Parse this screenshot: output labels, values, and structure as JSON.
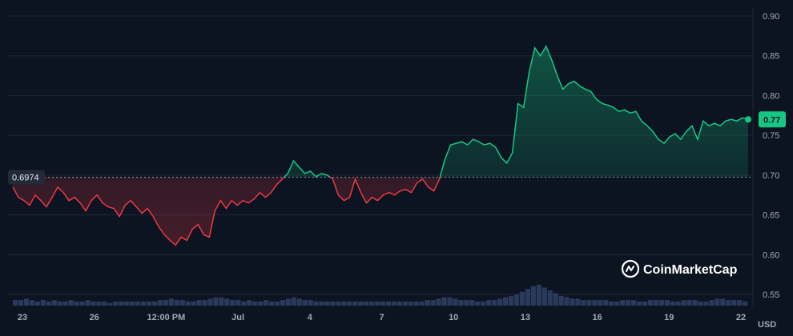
{
  "brand": {
    "name": "CoinMarketCap",
    "logo_icon": "coinmarketcap-logo-icon"
  },
  "colors": {
    "up": "#16c784",
    "down": "#ea3943",
    "background": "#0d1421",
    "grid": "#1f2636",
    "volume": "#2b3a5c"
  },
  "chart_data": {
    "type": "line",
    "x_tick_labels": [
      "23",
      "26",
      "12:00 PM",
      "Jul",
      "4",
      "7",
      "10",
      "13",
      "16",
      "19",
      "22"
    ],
    "y_ticks": [
      0.55,
      0.6,
      0.65,
      0.7,
      0.75,
      0.8,
      0.85,
      0.9
    ],
    "y_tick_labels": [
      "0.55",
      "0.60",
      "0.65",
      "0.70",
      "0.75",
      "0.80",
      "0.85",
      "0.90"
    ],
    "ylim": [
      0.55,
      0.9
    ],
    "y_unit": "USD",
    "reference_value": 0.6974,
    "reference_label": "0.6974",
    "current_value": 0.77,
    "current_label": "0.77",
    "grid": true,
    "points": [
      [
        0,
        0.685
      ],
      [
        1,
        0.672
      ],
      [
        2,
        0.668
      ],
      [
        3,
        0.662
      ],
      [
        4,
        0.675
      ],
      [
        5,
        0.668
      ],
      [
        6,
        0.66
      ],
      [
        7,
        0.672
      ],
      [
        8,
        0.685
      ],
      [
        9,
        0.678
      ],
      [
        10,
        0.668
      ],
      [
        11,
        0.672
      ],
      [
        12,
        0.665
      ],
      [
        13,
        0.655
      ],
      [
        14,
        0.668
      ],
      [
        15,
        0.675
      ],
      [
        16,
        0.665
      ],
      [
        17,
        0.66
      ],
      [
        18,
        0.658
      ],
      [
        19,
        0.648
      ],
      [
        20,
        0.662
      ],
      [
        21,
        0.668
      ],
      [
        22,
        0.66
      ],
      [
        23,
        0.652
      ],
      [
        24,
        0.658
      ],
      [
        25,
        0.648
      ],
      [
        26,
        0.635
      ],
      [
        27,
        0.625
      ],
      [
        28,
        0.618
      ],
      [
        29,
        0.612
      ],
      [
        30,
        0.622
      ],
      [
        31,
        0.618
      ],
      [
        32,
        0.632
      ],
      [
        33,
        0.638
      ],
      [
        34,
        0.625
      ],
      [
        35,
        0.622
      ],
      [
        36,
        0.655
      ],
      [
        37,
        0.668
      ],
      [
        38,
        0.658
      ],
      [
        39,
        0.668
      ],
      [
        40,
        0.662
      ],
      [
        41,
        0.668
      ],
      [
        42,
        0.665
      ],
      [
        43,
        0.67
      ],
      [
        44,
        0.678
      ],
      [
        45,
        0.672
      ],
      [
        46,
        0.678
      ],
      [
        47,
        0.688
      ],
      [
        48,
        0.695
      ],
      [
        49,
        0.702
      ],
      [
        50,
        0.718
      ],
      [
        51,
        0.71
      ],
      [
        52,
        0.702
      ],
      [
        53,
        0.705
      ],
      [
        54,
        0.698
      ],
      [
        55,
        0.702
      ],
      [
        56,
        0.7
      ],
      [
        57,
        0.695
      ],
      [
        58,
        0.675
      ],
      [
        59,
        0.668
      ],
      [
        60,
        0.672
      ],
      [
        61,
        0.695
      ],
      [
        62,
        0.678
      ],
      [
        63,
        0.665
      ],
      [
        64,
        0.672
      ],
      [
        65,
        0.668
      ],
      [
        66,
        0.675
      ],
      [
        67,
        0.678
      ],
      [
        68,
        0.675
      ],
      [
        69,
        0.68
      ],
      [
        70,
        0.682
      ],
      [
        71,
        0.678
      ],
      [
        72,
        0.69
      ],
      [
        73,
        0.695
      ],
      [
        74,
        0.685
      ],
      [
        75,
        0.68
      ],
      [
        76,
        0.695
      ],
      [
        77,
        0.72
      ],
      [
        78,
        0.738
      ],
      [
        79,
        0.74
      ],
      [
        80,
        0.742
      ],
      [
        81,
        0.738
      ],
      [
        82,
        0.745
      ],
      [
        83,
        0.742
      ],
      [
        84,
        0.738
      ],
      [
        85,
        0.74
      ],
      [
        86,
        0.735
      ],
      [
        87,
        0.722
      ],
      [
        88,
        0.715
      ],
      [
        89,
        0.728
      ],
      [
        90,
        0.79
      ],
      [
        91,
        0.785
      ],
      [
        92,
        0.83
      ],
      [
        93,
        0.86
      ],
      [
        94,
        0.85
      ],
      [
        95,
        0.862
      ],
      [
        96,
        0.845
      ],
      [
        97,
        0.825
      ],
      [
        98,
        0.808
      ],
      [
        99,
        0.815
      ],
      [
        100,
        0.818
      ],
      [
        101,
        0.812
      ],
      [
        102,
        0.808
      ],
      [
        103,
        0.805
      ],
      [
        104,
        0.795
      ],
      [
        105,
        0.79
      ],
      [
        106,
        0.788
      ],
      [
        107,
        0.785
      ],
      [
        108,
        0.78
      ],
      [
        109,
        0.782
      ],
      [
        110,
        0.778
      ],
      [
        111,
        0.78
      ],
      [
        112,
        0.768
      ],
      [
        113,
        0.762
      ],
      [
        114,
        0.755
      ],
      [
        115,
        0.745
      ],
      [
        116,
        0.74
      ],
      [
        117,
        0.748
      ],
      [
        118,
        0.752
      ],
      [
        119,
        0.745
      ],
      [
        120,
        0.755
      ],
      [
        121,
        0.762
      ],
      [
        122,
        0.745
      ],
      [
        123,
        0.768
      ],
      [
        124,
        0.762
      ],
      [
        125,
        0.765
      ],
      [
        126,
        0.762
      ],
      [
        127,
        0.768
      ],
      [
        128,
        0.77
      ],
      [
        129,
        0.768
      ],
      [
        130,
        0.772
      ],
      [
        131,
        0.77
      ]
    ],
    "volume": [
      4,
      4,
      5,
      4,
      3,
      4,
      3,
      4,
      3,
      3,
      4,
      3,
      3,
      4,
      3,
      3,
      3,
      2,
      3,
      3,
      3,
      3,
      3,
      3,
      3,
      3,
      4,
      4,
      5,
      4,
      4,
      3,
      3,
      4,
      4,
      5,
      6,
      6,
      5,
      4,
      4,
      3,
      4,
      3,
      3,
      4,
      3,
      3,
      4,
      5,
      6,
      5,
      4,
      4,
      3,
      3,
      3,
      3,
      3,
      3,
      3,
      3,
      3,
      3,
      3,
      3,
      3,
      3,
      3,
      3,
      3,
      3,
      3,
      3,
      4,
      4,
      5,
      6,
      6,
      5,
      4,
      4,
      4,
      3,
      3,
      4,
      4,
      5,
      6,
      7,
      8,
      10,
      12,
      14,
      15,
      13,
      11,
      9,
      7,
      6,
      5,
      5,
      4,
      4,
      4,
      4,
      4,
      3,
      3,
      4,
      4,
      4,
      3,
      3,
      4,
      4,
      4,
      4,
      3,
      3,
      4,
      4,
      4,
      3,
      3,
      4,
      5,
      5,
      4,
      4,
      4,
      3
    ]
  }
}
